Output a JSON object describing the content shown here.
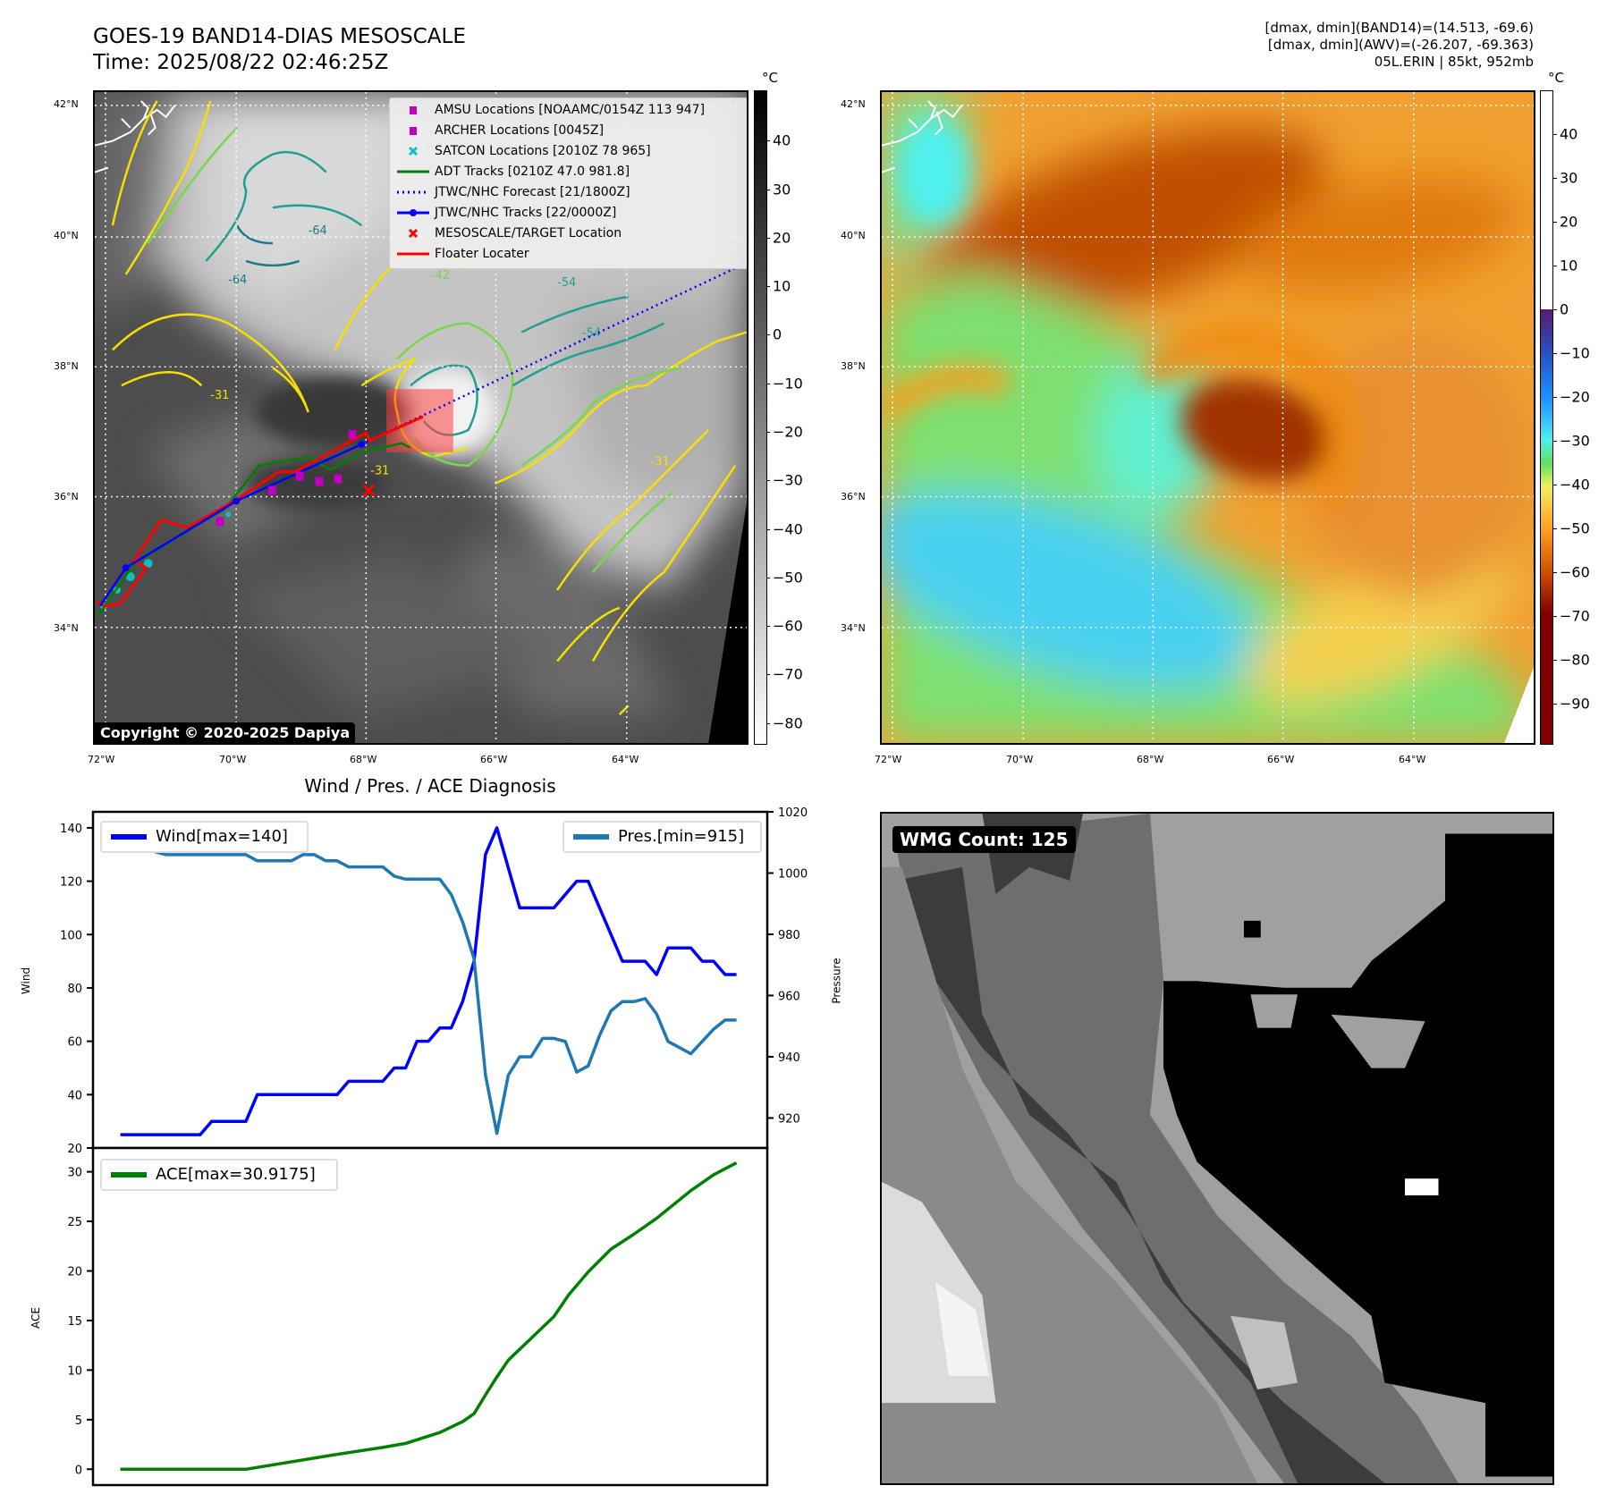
{
  "header": {
    "title_line1": "GOES-19 BAND14-DIAS MESOSCALE",
    "title_line2": "Time: 2025/08/22 02:46:25Z",
    "info_line1": "[dmax, dmin](BAND14)=(14.513, -69.6)",
    "info_line2": "[dmax, dmin](AWV)=(-26.207, -69.363)",
    "info_line3": "05L.ERIN | 85kt, 952mb"
  },
  "map": {
    "lat_labels": [
      "42°N",
      "40°N",
      "38°N",
      "36°N",
      "34°N"
    ],
    "lon_labels": [
      "72°W",
      "70°W",
      "68°W",
      "66°W",
      "64°W"
    ],
    "contour_labels": [
      "-64",
      "-64",
      "-54",
      "-54",
      "-42",
      "-31",
      "-31",
      "-31"
    ],
    "copyright": "Copyright © 2020-2025 Dapiya",
    "legend": [
      {
        "label": "AMSU Locations [NOAAMC/0154Z 113 947]",
        "color": "#c000c0",
        "icon": "square-marker"
      },
      {
        "label": "ARCHER Locations [0045Z]",
        "color": "#c000c0",
        "icon": "square-marker"
      },
      {
        "label": "SATCON Locations [2010Z 78 965]",
        "color": "#10c0c0",
        "icon": "x-marker"
      },
      {
        "label": "ADT Tracks [0210Z 47.0 981.8]",
        "color": "#008000",
        "icon": "line"
      },
      {
        "label": "JTWC/NHC Forecast [21/1800Z]",
        "color": "#0000ff",
        "icon": "dotted-line"
      },
      {
        "label": "JTWC/NHC Tracks [22/0000Z]",
        "color": "#0000ff",
        "icon": "line-dot"
      },
      {
        "label": "MESOSCALE/TARGET Location",
        "color": "#ff0000",
        "icon": "x-marker"
      },
      {
        "label": "Floater Locater",
        "color": "#ff0000",
        "icon": "line"
      }
    ]
  },
  "colorbar_left": {
    "unit": "°C",
    "range": [
      -84.5,
      50.4
    ],
    "ticks": [
      "40",
      "30",
      "20",
      "10",
      "0",
      "−10",
      "−20",
      "−30",
      "−40",
      "−50",
      "−60",
      "−70",
      "−80"
    ],
    "values": [
      40,
      30,
      20,
      10,
      0,
      -10,
      -20,
      -30,
      -40,
      -50,
      -60,
      -70,
      -80
    ]
  },
  "colorbar_right": {
    "unit": "°C",
    "range": [
      -99.4,
      50.1
    ],
    "ticks": [
      "40",
      "30",
      "20",
      "10",
      "0",
      "−10",
      "−20",
      "−30",
      "−40",
      "−50",
      "−60",
      "−70",
      "−80",
      "−90"
    ],
    "values": [
      40,
      30,
      20,
      10,
      0,
      -10,
      -20,
      -30,
      -40,
      -50,
      -60,
      -70,
      -80,
      -90
    ]
  },
  "wmg": {
    "label": "WMG Count: 125"
  },
  "chart_data": [
    {
      "type": "line",
      "title": "Wind / Pres. / ACE Diagnosis",
      "xlim": [
        -2.4,
        56.7
      ],
      "ylabel": "Wind",
      "ylim": [
        20,
        146
      ],
      "yticks": [
        20,
        40,
        60,
        80,
        100,
        120,
        140
      ],
      "y2label": "Pressure",
      "y2lim": [
        910.2,
        1020
      ],
      "y2ticks": [
        920,
        940,
        960,
        980,
        1000,
        1020
      ],
      "series": [
        {
          "name": "Wind[max=140]",
          "color": "#0000ff",
          "axis": "left",
          "points": [
            [
              0,
              25
            ],
            [
              7,
              25
            ],
            [
              8,
              30
            ],
            [
              11,
              30
            ],
            [
              12,
              40
            ],
            [
              19,
              40
            ],
            [
              20,
              45
            ],
            [
              23,
              45
            ],
            [
              24,
              50
            ],
            [
              25,
              50
            ],
            [
              26,
              60
            ],
            [
              27,
              60
            ],
            [
              28,
              65
            ],
            [
              29,
              65
            ],
            [
              30,
              75
            ],
            [
              31,
              90
            ],
            [
              32,
              130
            ],
            [
              33,
              140
            ],
            [
              35,
              110
            ],
            [
              38,
              110
            ],
            [
              40,
              120
            ],
            [
              41,
              120
            ],
            [
              44,
              90
            ],
            [
              46,
              90
            ],
            [
              47,
              85
            ],
            [
              48,
              95
            ],
            [
              50,
              95
            ],
            [
              51,
              90
            ],
            [
              52,
              90
            ],
            [
              53,
              85
            ],
            [
              54,
              85
            ]
          ]
        },
        {
          "name": "Pres.[min=915]",
          "color": "#1f77b4",
          "axis": "right",
          "points": [
            [
              0,
              1015
            ],
            [
              1,
              1015
            ],
            [
              2,
              1008
            ],
            [
              4,
              1006
            ],
            [
              11,
              1006
            ],
            [
              12,
              1004
            ],
            [
              15,
              1004
            ],
            [
              16,
              1006
            ],
            [
              17,
              1006
            ],
            [
              18,
              1004
            ],
            [
              19,
              1004
            ],
            [
              20,
              1002
            ],
            [
              23,
              1002
            ],
            [
              24,
              999
            ],
            [
              25,
              998
            ],
            [
              28,
              998
            ],
            [
              29,
              993
            ],
            [
              30,
              984
            ],
            [
              31,
              972
            ],
            [
              32,
              934
            ],
            [
              33,
              915
            ],
            [
              34,
              934
            ],
            [
              35,
              940
            ],
            [
              36,
              940
            ],
            [
              37,
              946
            ],
            [
              38,
              946
            ],
            [
              39,
              945
            ],
            [
              40,
              935
            ],
            [
              41,
              937
            ],
            [
              42,
              947
            ],
            [
              43,
              955
            ],
            [
              44,
              958
            ],
            [
              45,
              958
            ],
            [
              46,
              959
            ],
            [
              47,
              954
            ],
            [
              48,
              945
            ],
            [
              50,
              941
            ],
            [
              51,
              945
            ],
            [
              52,
              949
            ],
            [
              53,
              952
            ],
            [
              54,
              952
            ]
          ]
        }
      ],
      "legend": [
        "top-left",
        "top-right"
      ]
    },
    {
      "type": "line",
      "xlim": [
        -2.4,
        56.7
      ],
      "ylabel": "ACE",
      "ylim": [
        -1.6,
        32.4
      ],
      "yticks": [
        0,
        5,
        10,
        15,
        20,
        25,
        30
      ],
      "series": [
        {
          "name": "ACE[max=30.9175]",
          "color": "#008000",
          "axis": "left",
          "points": [
            [
              0,
              0
            ],
            [
              11,
              0
            ],
            [
              19,
              1.5
            ],
            [
              23,
              2.2
            ],
            [
              25,
              2.6
            ],
            [
              28,
              3.7
            ],
            [
              30,
              4.8
            ],
            [
              31,
              5.6
            ],
            [
              32,
              7.5
            ],
            [
              33,
              9.3
            ],
            [
              34,
              11
            ],
            [
              36,
              13.2
            ],
            [
              38,
              15.4
            ],
            [
              39.3,
              17.6
            ],
            [
              41,
              19.9
            ],
            [
              43,
              22.2
            ],
            [
              45,
              23.7
            ],
            [
              47,
              25.3
            ],
            [
              50,
              28.1
            ],
            [
              52,
              29.7
            ],
            [
              54,
              30.9
            ]
          ]
        }
      ],
      "legend": [
        "top-left"
      ]
    }
  ]
}
